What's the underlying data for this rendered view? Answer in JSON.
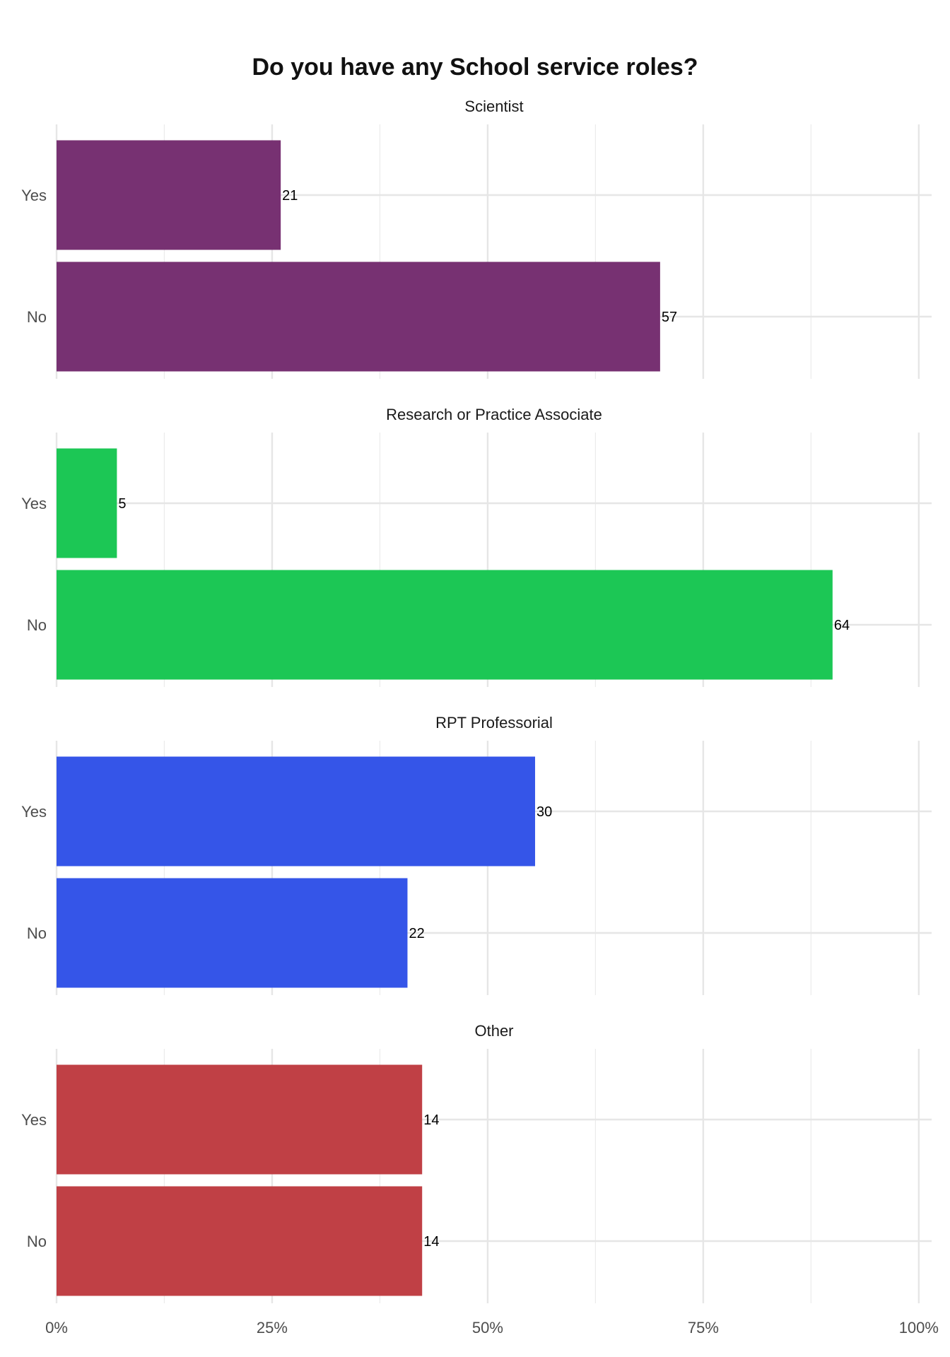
{
  "chart_data": {
    "type": "bar",
    "orientation": "horizontal",
    "title": "Do you have any School service roles?",
    "xlabel": "",
    "ylabel": "",
    "xlim": [
      0,
      1
    ],
    "x_tick_labels": [
      "0%",
      "25%",
      "50%",
      "75%",
      "100%"
    ],
    "grid": true,
    "legend": "none",
    "categories": [
      "Yes",
      "No"
    ],
    "panels": [
      {
        "name": "Scientist",
        "color": "#773172",
        "series": [
          {
            "category": "Yes",
            "count": 21,
            "share": 0.26
          },
          {
            "category": "No",
            "count": 57,
            "share": 0.7
          }
        ]
      },
      {
        "name": "Research or Practice Associate",
        "color": "#1CC755",
        "series": [
          {
            "category": "Yes",
            "count": 5,
            "share": 0.07
          },
          {
            "category": "No",
            "count": 64,
            "share": 0.9
          }
        ]
      },
      {
        "name": "RPT Professorial",
        "color": "#3555E8",
        "series": [
          {
            "category": "Yes",
            "count": 30,
            "share": 0.555
          },
          {
            "category": "No",
            "count": 22,
            "share": 0.407
          }
        ]
      },
      {
        "name": "Other",
        "color": "#C04045",
        "series": [
          {
            "category": "Yes",
            "count": 14,
            "share": 0.424
          },
          {
            "category": "No",
            "count": 14,
            "share": 0.424
          }
        ]
      }
    ]
  }
}
